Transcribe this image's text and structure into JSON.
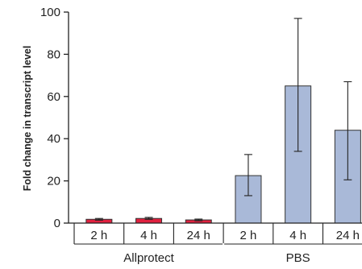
{
  "chart_data": {
    "type": "bar",
    "title": "",
    "xlabel": "",
    "ylabel": "Fold change in transcript level",
    "ylim": [
      0,
      100
    ],
    "yticks": [
      0,
      20,
      40,
      60,
      80,
      100
    ],
    "grid": false,
    "legend": "none",
    "categories": [
      "2 h",
      "4 h",
      "24 h",
      "2 h",
      "4 h",
      "24 h"
    ],
    "groups": [
      {
        "name": "Allprotect",
        "color": "#e0213f",
        "indices": [
          0,
          1,
          2
        ]
      },
      {
        "name": "PBS",
        "color": "#a9b9d8",
        "indices": [
          3,
          4,
          5
        ]
      }
    ],
    "values": [
      1.8,
      2.2,
      1.5,
      22.5,
      65,
      44
    ],
    "errors": [
      [
        1.4,
        2.2
      ],
      [
        1.8,
        2.7
      ],
      [
        1.1,
        1.9
      ],
      [
        13,
        32.5
      ],
      [
        34,
        97
      ],
      [
        20.5,
        67
      ]
    ]
  }
}
